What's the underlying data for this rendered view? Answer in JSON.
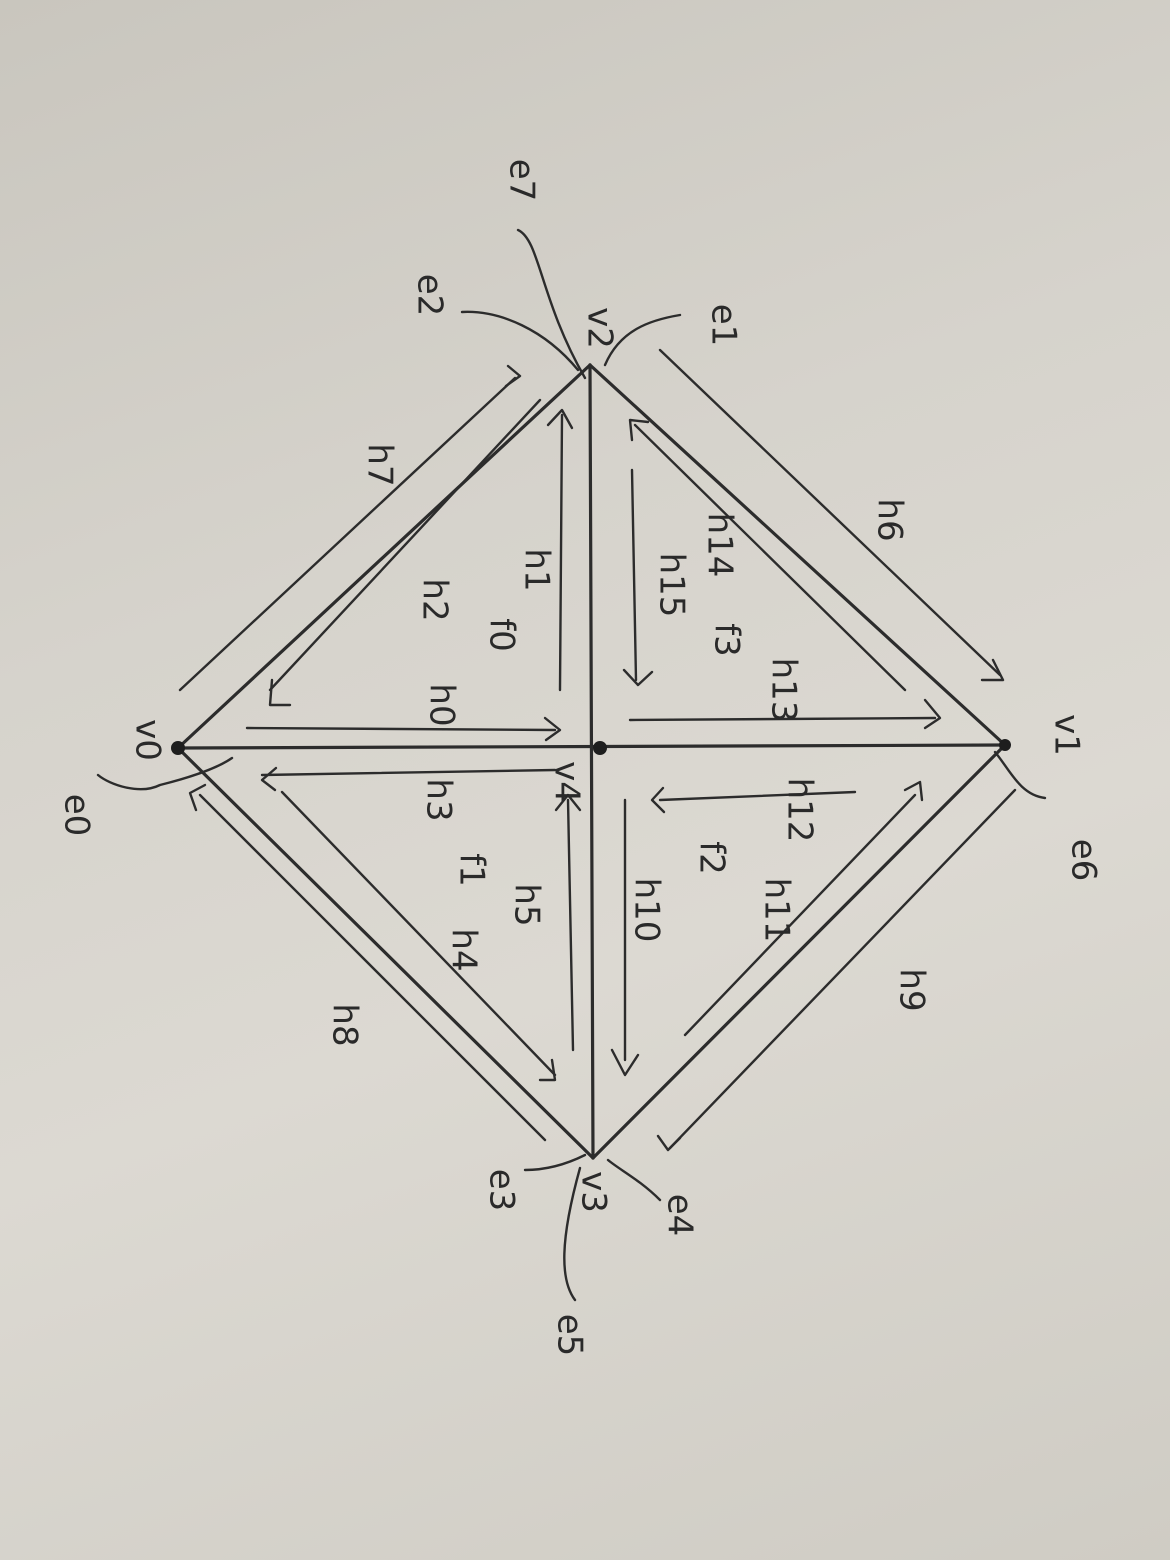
{
  "vertex_labels": {
    "v0": "v0",
    "v1": "v1",
    "v2": "v2",
    "v3": "v3",
    "v4": "v4"
  },
  "edge_labels": {
    "e0": "e0",
    "e1": "e1",
    "e2": "e2",
    "e3": "e3",
    "e4": "e4",
    "e5": "e5",
    "e6": "e6",
    "e7": "e7"
  },
  "face_labels": {
    "f0": "f0",
    "f1": "f1",
    "f2": "f2",
    "f3": "f3"
  },
  "halfedge_labels": {
    "h0": "h0",
    "h1": "h1",
    "h2": "h2",
    "h3": "h3",
    "h4": "h4",
    "h5": "h5",
    "h6": "h6",
    "h7": "h7",
    "h8": "h8",
    "h9": "h9",
    "h10": "h10",
    "h11": "h11",
    "h12": "h12",
    "h13": "h13",
    "h14": "h14",
    "h15": "h15"
  }
}
